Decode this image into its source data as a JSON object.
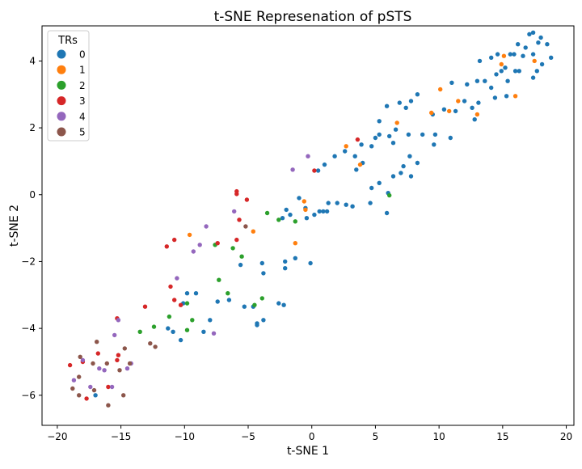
{
  "chart_data": {
    "type": "scatter",
    "title": "t-SNE Represenation of pSTS",
    "xlabel": "t-SNE 1",
    "ylabel": "t-SNE 2",
    "xlim": [
      -21.2,
      20.6
    ],
    "ylim": [
      -6.9,
      5.05
    ],
    "xticks": [
      -20,
      -15,
      -10,
      -5,
      0,
      5,
      10,
      15,
      20
    ],
    "yticks": [
      -6,
      -4,
      -2,
      0,
      2,
      4
    ],
    "grid": false,
    "legend": {
      "title": "TRs",
      "placement": "top-left"
    },
    "series": [
      {
        "name": "0",
        "color": "#1f77b4",
        "points": [
          [
            15.6,
            4.2
          ],
          [
            16.2,
            4.5
          ],
          [
            17.1,
            4.8
          ],
          [
            17.4,
            4.85
          ],
          [
            18.0,
            4.7
          ],
          [
            18.5,
            4.5
          ],
          [
            16.8,
            4.4
          ],
          [
            17.8,
            4.55
          ],
          [
            18.8,
            4.1
          ],
          [
            14.6,
            4.2
          ],
          [
            15.2,
            3.8
          ],
          [
            13.2,
            4.0
          ],
          [
            14.1,
            4.1
          ],
          [
            15.9,
            4.2
          ],
          [
            16.6,
            4.15
          ],
          [
            17.4,
            4.2
          ],
          [
            18.1,
            3.9
          ],
          [
            17.7,
            3.7
          ],
          [
            17.4,
            3.5
          ],
          [
            16.3,
            3.7
          ],
          [
            16.0,
            3.7
          ],
          [
            15.4,
            3.4
          ],
          [
            14.5,
            3.6
          ],
          [
            13.6,
            3.4
          ],
          [
            13.0,
            3.4
          ],
          [
            12.2,
            3.3
          ],
          [
            11.0,
            3.35
          ],
          [
            14.9,
            3.7
          ],
          [
            14.1,
            3.2
          ],
          [
            14.4,
            2.9
          ],
          [
            15.3,
            2.95
          ],
          [
            12.0,
            2.8
          ],
          [
            13.1,
            2.75
          ],
          [
            12.6,
            2.6
          ],
          [
            11.3,
            2.5
          ],
          [
            10.4,
            2.55
          ],
          [
            12.8,
            2.25
          ],
          [
            9.5,
            2.4
          ],
          [
            7.4,
            2.6
          ],
          [
            7.8,
            2.8
          ],
          [
            6.9,
            2.75
          ],
          [
            8.3,
            3.0
          ],
          [
            5.9,
            2.65
          ],
          [
            5.3,
            2.2
          ],
          [
            6.6,
            1.95
          ],
          [
            5.3,
            1.8
          ],
          [
            6.1,
            1.75
          ],
          [
            7.6,
            1.8
          ],
          [
            8.7,
            1.8
          ],
          [
            9.7,
            1.8
          ],
          [
            10.9,
            1.7
          ],
          [
            9.6,
            1.5
          ],
          [
            5.0,
            1.7
          ],
          [
            4.7,
            1.45
          ],
          [
            6.4,
            1.55
          ],
          [
            3.9,
            1.5
          ],
          [
            2.6,
            1.3
          ],
          [
            1.8,
            1.15
          ],
          [
            3.4,
            1.15
          ],
          [
            4.0,
            0.95
          ],
          [
            1.0,
            0.9
          ],
          [
            3.5,
            0.75
          ],
          [
            0.5,
            0.72
          ],
          [
            7.7,
            1.15
          ],
          [
            8.3,
            0.95
          ],
          [
            7.2,
            0.85
          ],
          [
            7.0,
            0.65
          ],
          [
            6.4,
            0.55
          ],
          [
            7.8,
            0.55
          ],
          [
            5.3,
            0.35
          ],
          [
            4.7,
            0.2
          ],
          [
            6.0,
            0.05
          ],
          [
            4.6,
            -0.25
          ],
          [
            2.7,
            -0.3
          ],
          [
            2.0,
            -0.25
          ],
          [
            3.2,
            -0.35
          ],
          [
            1.3,
            -0.25
          ],
          [
            0.9,
            -0.5
          ],
          [
            0.6,
            -0.5
          ],
          [
            0.2,
            -0.6
          ],
          [
            -0.5,
            -0.4
          ],
          [
            -1.0,
            -0.1
          ],
          [
            -2.0,
            -0.45
          ],
          [
            -1.7,
            -0.6
          ],
          [
            -2.3,
            -0.7
          ],
          [
            -0.4,
            -0.7
          ],
          [
            5.9,
            -0.55
          ],
          [
            1.2,
            -0.5
          ],
          [
            -2.1,
            -2.0
          ],
          [
            -2.1,
            -2.2
          ],
          [
            -0.1,
            -2.05
          ],
          [
            -1.3,
            -1.9
          ],
          [
            -3.9,
            -2.05
          ],
          [
            -3.8,
            -2.35
          ],
          [
            -5.6,
            -2.1
          ],
          [
            -6.5,
            -3.15
          ],
          [
            -7.4,
            -3.2
          ],
          [
            -5.3,
            -3.35
          ],
          [
            -4.6,
            -3.35
          ],
          [
            -2.6,
            -3.25
          ],
          [
            -2.2,
            -3.3
          ],
          [
            -3.8,
            -3.75
          ],
          [
            -4.3,
            -3.85
          ],
          [
            -4.3,
            -3.9
          ],
          [
            -8.0,
            -3.75
          ],
          [
            -9.1,
            -2.95
          ],
          [
            -9.8,
            -2.95
          ],
          [
            -10.1,
            -3.25
          ],
          [
            -8.5,
            -4.1
          ],
          [
            -11.3,
            -4.0
          ],
          [
            -10.9,
            -4.1
          ],
          [
            -10.3,
            -4.35
          ],
          [
            -17.0,
            -6.0
          ]
        ]
      },
      {
        "name": "1",
        "color": "#ff7f0e",
        "points": [
          [
            15.1,
            4.15
          ],
          [
            17.5,
            4.0
          ],
          [
            14.9,
            3.9
          ],
          [
            16.0,
            2.95
          ],
          [
            10.1,
            3.15
          ],
          [
            11.5,
            2.8
          ],
          [
            13.0,
            2.4
          ],
          [
            9.4,
            2.45
          ],
          [
            10.8,
            2.5
          ],
          [
            6.7,
            2.15
          ],
          [
            2.7,
            1.45
          ],
          [
            3.8,
            0.9
          ],
          [
            -0.6,
            -0.2
          ],
          [
            -0.5,
            -0.45
          ],
          [
            -1.3,
            -1.45
          ],
          [
            -4.6,
            -1.1
          ],
          [
            -9.6,
            -1.2
          ]
        ]
      },
      {
        "name": "2",
        "color": "#2ca02c",
        "points": [
          [
            6.1,
            -0.02
          ],
          [
            -3.5,
            -0.55
          ],
          [
            -2.6,
            -0.75
          ],
          [
            -1.3,
            -0.8
          ],
          [
            -6.2,
            -1.6
          ],
          [
            -7.6,
            -1.5
          ],
          [
            -5.5,
            -1.85
          ],
          [
            -7.3,
            -2.55
          ],
          [
            -6.6,
            -2.95
          ],
          [
            -9.8,
            -3.25
          ],
          [
            -3.9,
            -3.1
          ],
          [
            -4.5,
            -3.3
          ],
          [
            -11.2,
            -3.65
          ],
          [
            -9.4,
            -3.75
          ],
          [
            -12.4,
            -3.95
          ],
          [
            -9.8,
            -4.05
          ],
          [
            -13.5,
            -4.1
          ]
        ]
      },
      {
        "name": "3",
        "color": "#d62728",
        "points": [
          [
            3.6,
            1.65
          ],
          [
            0.2,
            0.72
          ],
          [
            -5.9,
            0.1
          ],
          [
            -5.9,
            0.02
          ],
          [
            -5.1,
            -0.15
          ],
          [
            -5.7,
            -0.75
          ],
          [
            -7.4,
            -1.45
          ],
          [
            -10.8,
            -1.35
          ],
          [
            -11.4,
            -1.55
          ],
          [
            -5.9,
            -1.35
          ],
          [
            -11.1,
            -2.75
          ],
          [
            -10.8,
            -3.15
          ],
          [
            -10.3,
            -3.3
          ],
          [
            -13.1,
            -3.35
          ],
          [
            -15.3,
            -3.7
          ],
          [
            -16.8,
            -4.75
          ],
          [
            -15.2,
            -4.8
          ],
          [
            -19.0,
            -5.1
          ],
          [
            -18.0,
            -5.0
          ],
          [
            -15.3,
            -4.95
          ],
          [
            -16.0,
            -5.75
          ],
          [
            -17.7,
            -6.1
          ]
        ]
      },
      {
        "name": "4",
        "color": "#9467bd",
        "points": [
          [
            -0.3,
            1.15
          ],
          [
            -1.5,
            0.75
          ],
          [
            -6.1,
            -0.5
          ],
          [
            -8.3,
            -0.95
          ],
          [
            -8.8,
            -1.5
          ],
          [
            -9.3,
            -1.7
          ],
          [
            -10.6,
            -2.5
          ],
          [
            -7.7,
            -4.15
          ],
          [
            -15.2,
            -3.75
          ],
          [
            -15.5,
            -4.2
          ],
          [
            -14.2,
            -5.05
          ],
          [
            -18.7,
            -5.55
          ],
          [
            -16.7,
            -5.2
          ],
          [
            -16.3,
            -5.25
          ],
          [
            -14.5,
            -5.2
          ],
          [
            -15.7,
            -5.75
          ],
          [
            -17.4,
            -5.75
          ],
          [
            -18.0,
            -4.95
          ]
        ]
      },
      {
        "name": "5",
        "color": "#8c564b",
        "points": [
          [
            -5.2,
            -0.95
          ],
          [
            -12.7,
            -4.45
          ],
          [
            -12.3,
            -4.55
          ],
          [
            -14.7,
            -4.6
          ],
          [
            -16.9,
            -4.4
          ],
          [
            -14.3,
            -5.05
          ],
          [
            -15.1,
            -5.25
          ],
          [
            -18.2,
            -4.85
          ],
          [
            -17.2,
            -5.05
          ],
          [
            -16.1,
            -5.05
          ],
          [
            -18.3,
            -5.45
          ],
          [
            -18.8,
            -5.8
          ],
          [
            -18.3,
            -6.0
          ],
          [
            -17.1,
            -5.85
          ],
          [
            -16.0,
            -6.3
          ],
          [
            -14.8,
            -6.0
          ]
        ]
      }
    ]
  }
}
